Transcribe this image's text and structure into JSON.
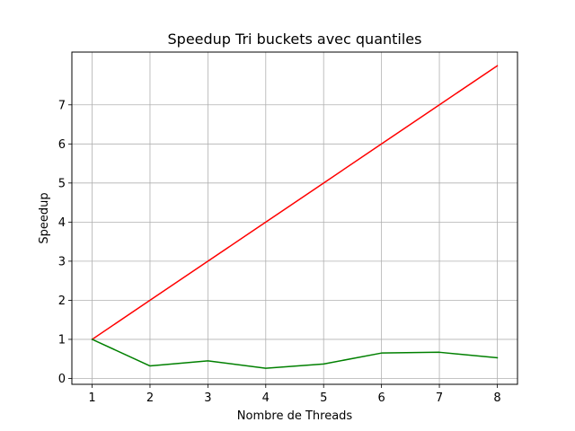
{
  "chart_data": {
    "type": "line",
    "title": "Speedup Tri buckets avec quantiles",
    "xlabel": "Nombre de Threads",
    "ylabel": "Speedup",
    "x": [
      1,
      2,
      3,
      4,
      5,
      6,
      7,
      8
    ],
    "xticks": [
      "1",
      "2",
      "3",
      "4",
      "5",
      "6",
      "7",
      "8"
    ],
    "yticks": [
      "0",
      "1",
      "2",
      "3",
      "4",
      "5",
      "6",
      "7"
    ],
    "xlim": [
      0.65,
      8.35
    ],
    "ylim": [
      -0.15,
      8.35
    ],
    "grid": true,
    "series": [
      {
        "color": "#ff0000",
        "values": [
          1,
          2,
          3,
          4,
          5,
          6,
          7,
          8
        ]
      },
      {
        "color": "#008000",
        "values": [
          1.0,
          0.32,
          0.45,
          0.26,
          0.37,
          0.65,
          0.67,
          0.53
        ]
      }
    ]
  }
}
